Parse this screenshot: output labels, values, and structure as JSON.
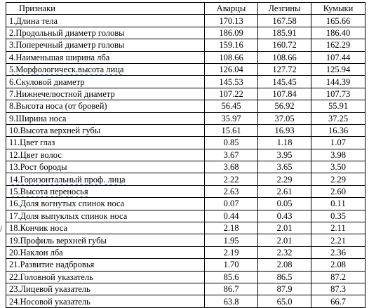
{
  "table": {
    "headers": [
      "Признаки",
      "Аварцы",
      "Лезгины",
      "Кумыки"
    ],
    "rows": [
      [
        "1.Длина тела",
        "170.13",
        "167.58",
        "165.66"
      ],
      [
        "2.Продольный диаметр головы",
        "186.09",
        "185.91",
        "186.40"
      ],
      [
        "3.Поперечный диаметр головы",
        "159.16",
        "160.72",
        "162.29"
      ],
      [
        "4.Наименьшая ширина лба",
        "108.66",
        "108.66",
        "107.44"
      ],
      [
        "5.Морфологическ.высота лица",
        "126.04",
        "127.72",
        "125.94"
      ],
      [
        "6.Скуловой диаметр",
        "145.53",
        "145.45",
        "144.39"
      ],
      [
        "7.Нижнечелюстной диаметр",
        "107.22",
        "107.84",
        "107.73"
      ],
      [
        "8.Высота носа (от бровей)",
        "56.45",
        "56.92",
        "55.91"
      ],
      [
        "9.Ширина носа",
        "35.97",
        "37.05",
        "37.25"
      ],
      [
        "10.Высота верхней губы",
        "15.61",
        "16.93",
        "16.36"
      ],
      [
        "11.Цвет глаз",
        "0.85",
        "1.18",
        "1.07"
      ],
      [
        "12.Цвет волос",
        "3.67",
        "3.95",
        "3.98"
      ],
      [
        "13.Рост бороды",
        "3.68",
        "3.65",
        "3.50"
      ],
      [
        "14.Горизонтальный проф. лица",
        "2.22",
        "2.29",
        "2.29"
      ],
      [
        "15.Высота переносья",
        "2.63",
        "2.61",
        "2.60"
      ],
      [
        "16.Доля вогнутых спинок носа",
        "0.07",
        "0.05",
        "0.11"
      ],
      [
        "17.Доля выпуклых спинок носа",
        "0.44",
        "0.43",
        "0.35"
      ],
      [
        "18.Кончик носа",
        "2.18",
        "2.01",
        "2.11"
      ],
      [
        "19.Профиль верхней губы",
        "1.95",
        "2.01",
        "2.21"
      ],
      [
        "20.Наклон лба",
        "2.19",
        "2.32",
        "2.36"
      ],
      [
        "21.Развитие надбровья",
        "1.70",
        "2.08",
        "2.08"
      ],
      [
        "22.Головной указатель",
        "85.6",
        "86.5",
        "87.2"
      ],
      [
        "23.Лицевой указатель",
        "86.7",
        "87.9",
        "87.3"
      ],
      [
        "24.Носовой указатель",
        "63.8",
        "65.0",
        "66.7"
      ]
    ]
  },
  "spellcheck_rows": [
    4,
    13,
    14
  ],
  "margin_mark": "/"
}
